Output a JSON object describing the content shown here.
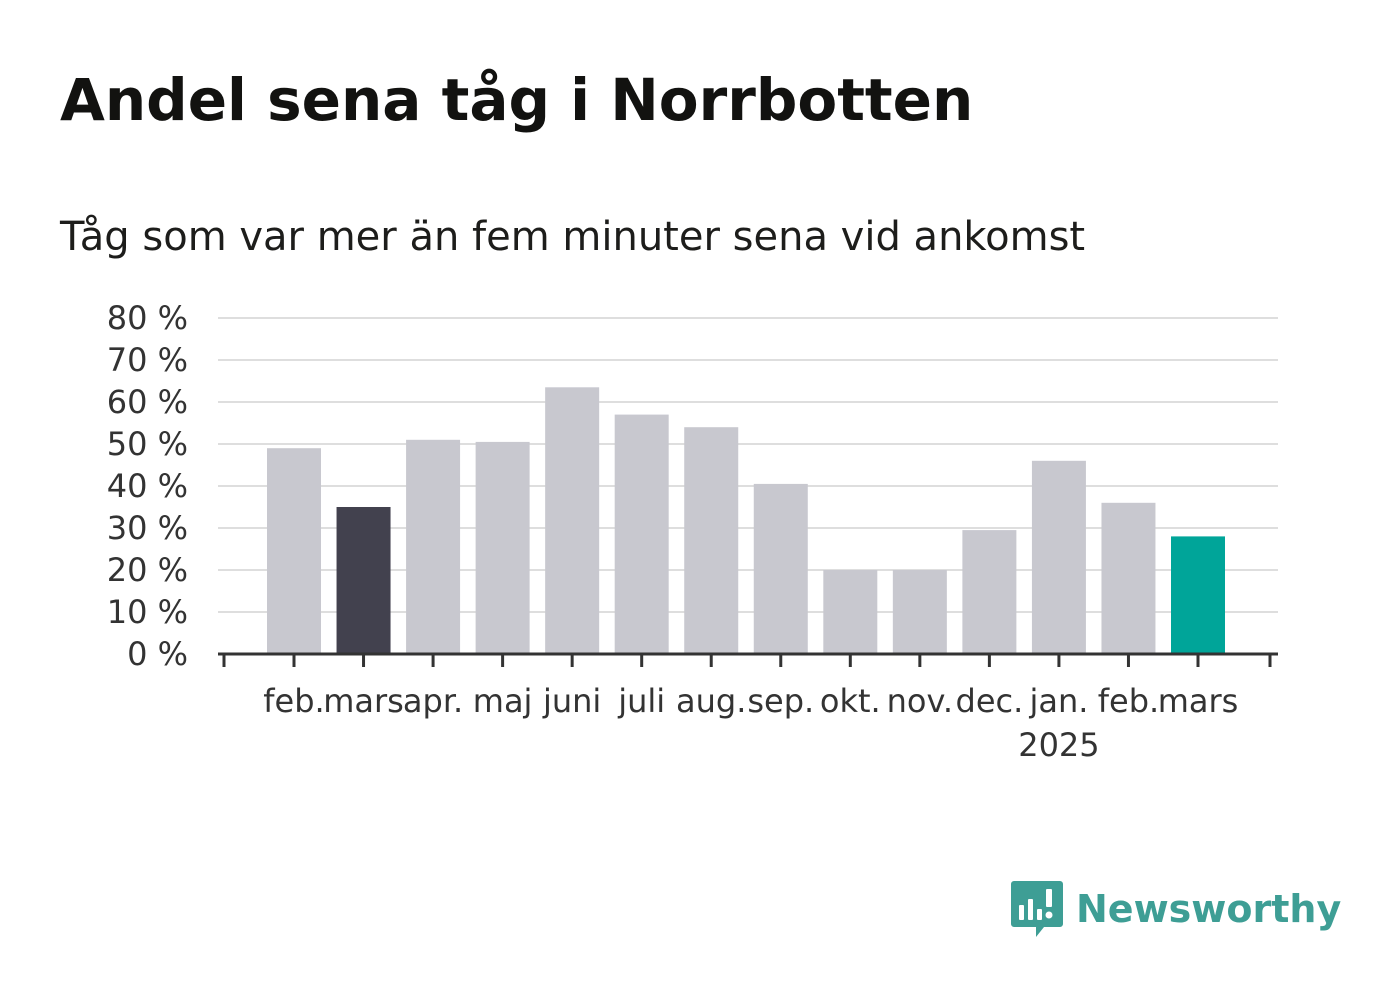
{
  "header": {
    "title": "Andel sena tåg i Norrbotten",
    "subtitle": "Tåg som var mer än fem minuter sena vid ankomst"
  },
  "brand": {
    "name": "Newsworthy",
    "logo_icon": "newsworthy-chart-bubble-icon",
    "color": "#3e9e95"
  },
  "chart_data": {
    "type": "bar",
    "categories": [
      "feb.",
      "mars",
      "apr.",
      "maj",
      "juni",
      "juli",
      "aug.",
      "sep.",
      "okt.",
      "nov.",
      "dec.",
      "jan.",
      "feb.",
      "mars"
    ],
    "year_annotation": {
      "category_index": 11,
      "text": "2025"
    },
    "values": [
      49,
      35,
      51,
      50.5,
      63.5,
      57,
      54,
      40.5,
      20,
      20,
      29.5,
      46,
      36,
      28
    ],
    "bar_colors": [
      "#c8c8cf",
      "#42414e",
      "#c8c8cf",
      "#c8c8cf",
      "#c8c8cf",
      "#c8c8cf",
      "#c8c8cf",
      "#c8c8cf",
      "#c8c8cf",
      "#c8c8cf",
      "#c8c8cf",
      "#c8c8cf",
      "#c8c8cf",
      "#00a599"
    ],
    "y_ticks": [
      0,
      10,
      20,
      30,
      40,
      50,
      60,
      70,
      80
    ],
    "y_tick_labels": [
      "0 %",
      "10 %",
      "20 %",
      "30 %",
      "40 %",
      "50 %",
      "60 %",
      "70 %",
      "80 %"
    ],
    "ylim": [
      0,
      80
    ],
    "grid": true,
    "legend": "none"
  }
}
